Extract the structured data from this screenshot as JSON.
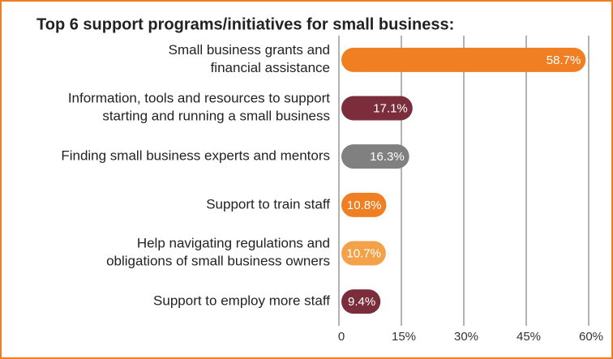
{
  "chart_data": {
    "type": "barh",
    "title": "Top 6 support programs/initiatives for small business:",
    "categories": [
      "Small business grants and\nfinancial assistance",
      "Information, tools and resources to support\nstarting and running a small business",
      "Finding small business experts and mentors",
      "Support to train staff",
      "Help navigating regulations and\nobligations of small business owners",
      "Support to employ more staff"
    ],
    "values": [
      58.7,
      17.1,
      16.3,
      10.8,
      10.7,
      9.4
    ],
    "value_labels": [
      "58.7%",
      "17.1%",
      "16.3%",
      "10.8%",
      "10.7%",
      "9.4%"
    ],
    "colors": [
      "#f07f23",
      "#7b2d3b",
      "#808080",
      "#f07f23",
      "#f4a24a",
      "#7b2d3b"
    ],
    "xlim": [
      0,
      60
    ],
    "xticks": [
      0,
      {
        "value": 15,
        "label": "15%"
      },
      {
        "value": 30,
        "label": "30%"
      },
      {
        "value": 45,
        "label": "45%"
      },
      {
        "value": 60,
        "label": "60%"
      }
    ],
    "grid": true
  }
}
